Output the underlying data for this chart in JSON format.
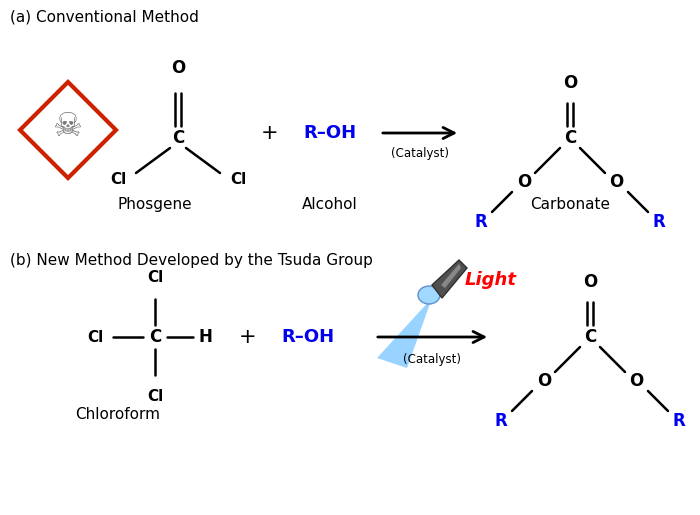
{
  "title_a": "(a) Conventional Method",
  "title_b": "(b) New Method Developed by the Tsuda Group",
  "label_phosgene": "Phosgene",
  "label_alcohol": "Alcohol",
  "label_carbonate": "Carbonate",
  "label_chloroform": "Chloroform",
  "label_catalyst_a": "(Catalyst)",
  "label_catalyst_b": "(Catalyst)",
  "label_light": "Light",
  "color_blue": "#0000EE",
  "color_red": "#FF0000",
  "color_black": "#000000",
  "color_bg": "#FFFFFF",
  "color_hazard_red": "#CC2200",
  "fs": 11
}
